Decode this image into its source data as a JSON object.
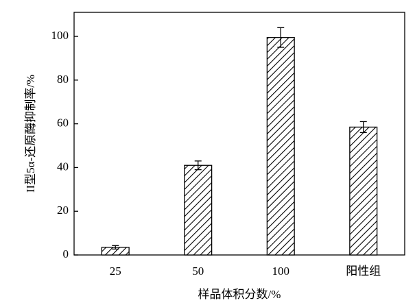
{
  "chart_data": {
    "type": "bar",
    "xlabel": "样品体积分数/%",
    "ylabel": "II型5α-还原酶抑制率/%",
    "categories": [
      "25",
      "50",
      "100",
      "阳性组"
    ],
    "values": [
      3.5,
      41,
      99.5,
      58.5
    ],
    "errors": [
      0.8,
      2,
      4.5,
      2.5
    ],
    "color": "#000000",
    "ylim": [
      0,
      111
    ],
    "yticks": [
      0,
      20,
      40,
      60,
      80,
      100
    ],
    "grid": false
  }
}
